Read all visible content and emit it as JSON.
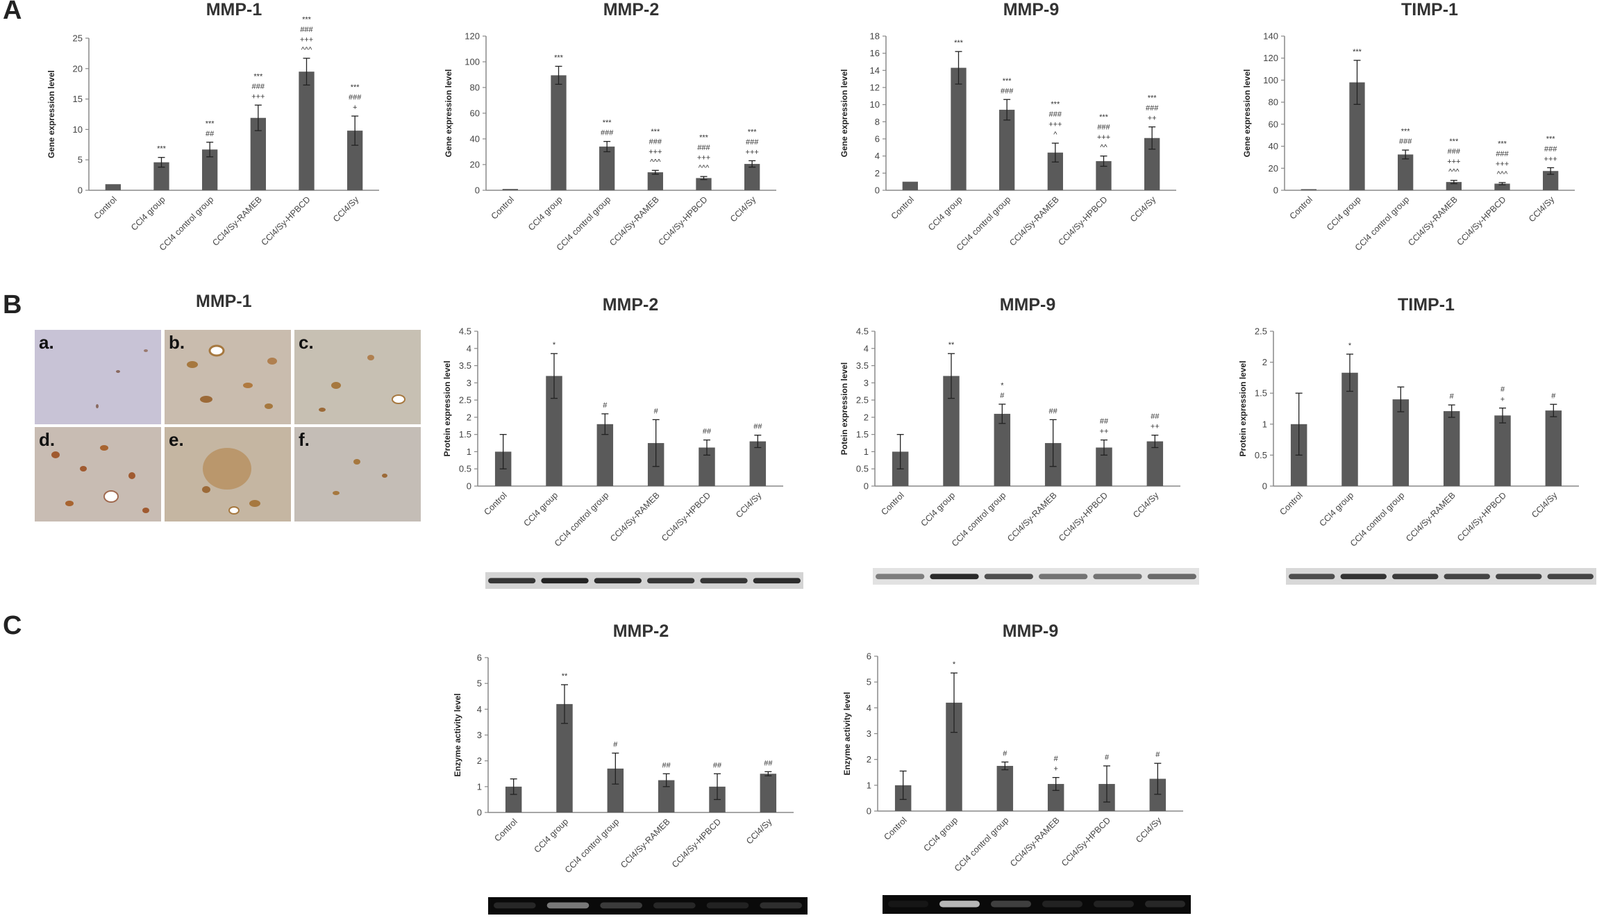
{
  "panels": {
    "a": "A",
    "b": "B",
    "c": "C"
  },
  "categories": [
    "Control",
    "CCl4 group",
    "CCl4 control group",
    "CCl4/Sy-RAMEB",
    "CCl4/Sy-HPBCD",
    "CCl4/Sy"
  ],
  "ihc": {
    "title": "MMP-1",
    "tiles": [
      "a.",
      "b.",
      "c.",
      "d.",
      "e.",
      "f."
    ]
  },
  "colors": {
    "bar": "#5a5a5a",
    "axis": "#888888"
  },
  "chart_data": [
    {
      "id": "A1",
      "type": "bar",
      "title": "MMP-1",
      "ylabel": "Gene expression level",
      "ylim": [
        0,
        25
      ],
      "yticks": [
        0,
        5,
        10,
        15,
        20,
        25
      ],
      "values": [
        1,
        4.6,
        6.7,
        11.9,
        19.5,
        9.8
      ],
      "errors": [
        0,
        0.8,
        1.2,
        2.1,
        2.2,
        2.4
      ],
      "annotations": [
        [],
        [
          "***"
        ],
        [
          "***",
          "##"
        ],
        [
          "***",
          "###",
          "+++"
        ],
        [
          "***",
          "###",
          "+++",
          "^^^"
        ],
        [
          "***",
          "###",
          "+"
        ]
      ]
    },
    {
      "id": "A2",
      "type": "bar",
      "title": "MMP-2",
      "ylabel": "Gene expression level",
      "ylim": [
        0,
        120
      ],
      "yticks": [
        0,
        20,
        40,
        60,
        80,
        100,
        120
      ],
      "values": [
        1,
        89.5,
        34,
        14,
        9.5,
        20.5
      ],
      "errors": [
        0,
        7,
        4,
        1.5,
        1.2,
        2.5
      ],
      "annotations": [
        [],
        [
          "***"
        ],
        [
          "***",
          "###"
        ],
        [
          "***",
          "###",
          "+++",
          "^^^"
        ],
        [
          "***",
          "###",
          "+++",
          "^^^"
        ],
        [
          "***",
          "###",
          "+++"
        ]
      ]
    },
    {
      "id": "A3",
      "type": "bar",
      "title": "MMP-9",
      "ylabel": "Gene expression level",
      "ylim": [
        0,
        18
      ],
      "yticks": [
        0,
        2,
        4,
        6,
        8,
        10,
        12,
        14,
        16,
        18
      ],
      "values": [
        1,
        14.3,
        9.4,
        4.4,
        3.4,
        6.1
      ],
      "errors": [
        0,
        1.9,
        1.2,
        1.1,
        0.6,
        1.3
      ],
      "annotations": [
        [],
        [
          "***"
        ],
        [
          "***",
          "###"
        ],
        [
          "***",
          "###",
          "+++",
          "^"
        ],
        [
          "***",
          "###",
          "+++",
          "^^"
        ],
        [
          "***",
          "###",
          "++"
        ]
      ]
    },
    {
      "id": "A4",
      "type": "bar",
      "title": "TIMP-1",
      "ylabel": "Gene expression level",
      "ylim": [
        0,
        140
      ],
      "yticks": [
        0,
        20,
        40,
        60,
        80,
        100,
        120,
        140
      ],
      "values": [
        1,
        98,
        32.5,
        7.5,
        6,
        17.5
      ],
      "errors": [
        0,
        20,
        4,
        1.5,
        1,
        3
      ],
      "annotations": [
        [],
        [
          "***"
        ],
        [
          "***",
          "###"
        ],
        [
          "***",
          "###",
          "+++",
          "^^^"
        ],
        [
          "***",
          "###",
          "+++",
          "^^^"
        ],
        [
          "***",
          "###",
          "+++"
        ]
      ]
    },
    {
      "id": "B2",
      "type": "bar",
      "title": "MMP-2",
      "ylabel": "Protein expression level",
      "ylim": [
        0,
        4.5
      ],
      "yticks": [
        "0",
        "0.5",
        "1",
        "1.5",
        "2",
        "2.5",
        "3",
        "3.5",
        "4",
        "4.5"
      ],
      "values": [
        1,
        3.2,
        1.8,
        1.25,
        1.12,
        1.3
      ],
      "errors": [
        0.5,
        0.65,
        0.3,
        0.68,
        0.22,
        0.18
      ],
      "annotations": [
        [],
        [
          "*"
        ],
        [
          "#"
        ],
        [
          "#"
        ],
        [
          "##"
        ],
        [
          "##"
        ]
      ]
    },
    {
      "id": "B3",
      "type": "bar",
      "title": "MMP-9",
      "ylabel": "Potein expression level",
      "ylim": [
        0,
        4.5
      ],
      "yticks": [
        "0",
        "0.5",
        "1",
        "1.5",
        "2",
        "2.5",
        "3",
        "3.5",
        "4",
        "4.5"
      ],
      "values": [
        1,
        3.2,
        2.1,
        1.25,
        1.12,
        1.3
      ],
      "errors": [
        0.5,
        0.65,
        0.28,
        0.68,
        0.22,
        0.18
      ],
      "annotations": [
        [],
        [
          "**"
        ],
        [
          "*",
          "#"
        ],
        [
          "##"
        ],
        [
          "##",
          "++"
        ],
        [
          "##",
          "++"
        ]
      ]
    },
    {
      "id": "B4",
      "type": "bar",
      "title": "TIMP-1",
      "ylabel": "Protein expression level",
      "ylim": [
        0,
        2.5
      ],
      "yticks": [
        "0",
        "0.5",
        "1",
        "1.5",
        "2",
        "2.5"
      ],
      "values": [
        1,
        1.83,
        1.4,
        1.21,
        1.14,
        1.22
      ],
      "errors": [
        0.5,
        0.3,
        0.2,
        0.1,
        0.12,
        0.1
      ],
      "annotations": [
        [],
        [
          "*"
        ],
        [],
        [
          "#"
        ],
        [
          "#",
          "+"
        ],
        [
          "#"
        ]
      ]
    },
    {
      "id": "C2",
      "type": "bar",
      "title": "MMP-2",
      "ylabel": "Enzyme activity level",
      "ylim": [
        0,
        6
      ],
      "yticks": [
        0,
        1,
        2,
        3,
        4,
        5,
        6
      ],
      "values": [
        1,
        4.2,
        1.7,
        1.25,
        1,
        1.5
      ],
      "errors": [
        0.3,
        0.75,
        0.6,
        0.25,
        0.5,
        0.08
      ],
      "annotations": [
        [],
        [
          "**"
        ],
        [
          "#"
        ],
        [
          "##"
        ],
        [
          "##"
        ],
        [
          "##"
        ]
      ]
    },
    {
      "id": "C3",
      "type": "bar",
      "title": "MMP-9",
      "ylabel": "Enzyme activity level",
      "ylim": [
        0,
        6
      ],
      "yticks": [
        0,
        1,
        2,
        3,
        4,
        5,
        6
      ],
      "values": [
        1,
        4.2,
        1.75,
        1.05,
        1.05,
        1.25
      ],
      "errors": [
        0.55,
        1.15,
        0.15,
        0.25,
        0.7,
        0.6
      ],
      "annotations": [
        [],
        [
          "*"
        ],
        [
          "#"
        ],
        [
          "#",
          "+"
        ],
        [
          "#"
        ],
        [
          "#"
        ]
      ]
    }
  ]
}
